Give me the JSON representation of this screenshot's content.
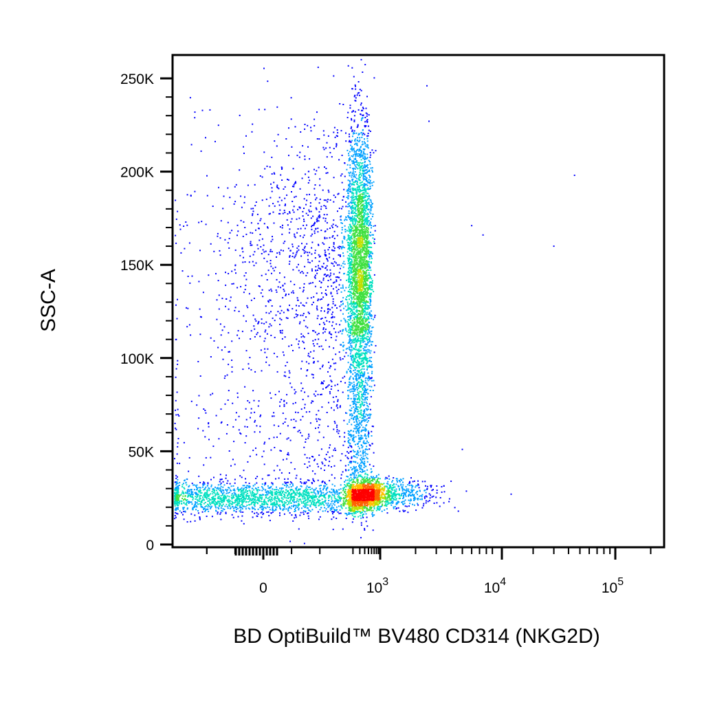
{
  "chart_data": {
    "type": "scatter",
    "subtype": "flow-cytometry-pseudocolor-density",
    "title": "",
    "xlabel": "BD OptiBuild™ BV480 CD314 (NKG2D)",
    "ylabel": "SSC-A",
    "x_scale": "biexponential",
    "y_scale": "linear",
    "xlim": [
      -400,
      250000
    ],
    "ylim": [
      -5000,
      262144
    ],
    "x_ticks": [
      {
        "value": 0,
        "base": "0",
        "exp": ""
      },
      {
        "value": 1000,
        "base": "10",
        "exp": "3"
      },
      {
        "value": 10000,
        "base": "10",
        "exp": "4"
      },
      {
        "value": 100000,
        "base": "10",
        "exp": "5"
      }
    ],
    "y_ticks": [
      {
        "value": 0,
        "label": "0"
      },
      {
        "value": 50000,
        "label": "50K"
      },
      {
        "value": 100000,
        "label": "100K"
      },
      {
        "value": 150000,
        "label": "150K"
      },
      {
        "value": 200000,
        "label": "200K"
      },
      {
        "value": 250000,
        "label": "250K"
      }
    ],
    "grid": false,
    "legend": "none",
    "colormap": [
      "#0000ff",
      "#00a0ff",
      "#00e0c0",
      "#40e040",
      "#c0e000",
      "#ffc000",
      "#ff6000",
      "#ff0000"
    ],
    "populations": [
      {
        "name": "",
        "x_center": 10,
        "y_center": 25000,
        "x_spread": 180,
        "y_spread": 4500,
        "events": 2600
      },
      {
        "name": "",
        "x_center": 700,
        "y_center": 27000,
        "x_spread": 650,
        "y_spread": 4000,
        "events": 1500
      },
      {
        "name": "",
        "x_center": 250,
        "y_center": 150000,
        "x_spread": 160,
        "y_spread": 38000,
        "events": 4200
      },
      {
        "name": "",
        "x_center": 200,
        "y_center": 60000,
        "x_spread": 180,
        "y_spread": 22000,
        "events": 900
      }
    ],
    "outliers": [
      {
        "x": 45000,
        "y": 198000
      },
      {
        "x": 30000,
        "y": 160000
      },
      {
        "x": 7500,
        "y": 166000
      },
      {
        "x": 6000,
        "y": 171000
      },
      {
        "x": 13000,
        "y": 27000
      },
      {
        "x": 5000,
        "y": 51000
      },
      {
        "x": 2500,
        "y": 246000
      },
      {
        "x": 2600,
        "y": 227000
      }
    ]
  }
}
